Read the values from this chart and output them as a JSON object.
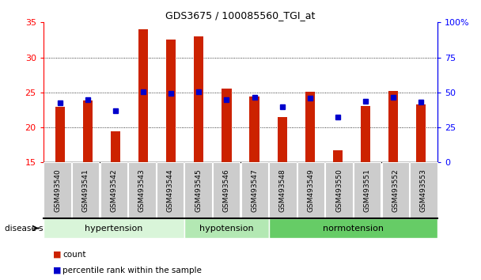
{
  "title": "GDS3675 / 100085560_TGI_at",
  "samples": [
    "GSM493540",
    "GSM493541",
    "GSM493542",
    "GSM493543",
    "GSM493544",
    "GSM493545",
    "GSM493546",
    "GSM493547",
    "GSM493548",
    "GSM493549",
    "GSM493550",
    "GSM493551",
    "GSM493552",
    "GSM493553"
  ],
  "count_values": [
    23.0,
    23.9,
    19.4,
    34.0,
    32.5,
    33.0,
    25.5,
    24.4,
    21.5,
    25.1,
    16.7,
    23.1,
    25.2,
    23.3
  ],
  "percentile_values": [
    23.5,
    24.0,
    22.4,
    25.1,
    24.9,
    25.1,
    24.0,
    24.3,
    23.0,
    24.2,
    21.5,
    23.7,
    24.3,
    23.6
  ],
  "ymin": 15,
  "ymax": 35,
  "yticks_left": [
    15,
    20,
    25,
    30,
    35
  ],
  "yticks_right": [
    0,
    25,
    50,
    75,
    100
  ],
  "bar_color": "#cc2200",
  "dot_color": "#0000cc",
  "group_labels": [
    "hypertension",
    "hypotension",
    "normotension"
  ],
  "group_ranges": [
    [
      0,
      5
    ],
    [
      5,
      8
    ],
    [
      8,
      14
    ]
  ],
  "group_colors_light": [
    "#d9f5d9",
    "#b3e8b3",
    "#66cc66"
  ],
  "bar_width": 0.35,
  "background_color": "#ffffff",
  "grid_color": "#555555",
  "xtick_bg_color": "#cccccc"
}
